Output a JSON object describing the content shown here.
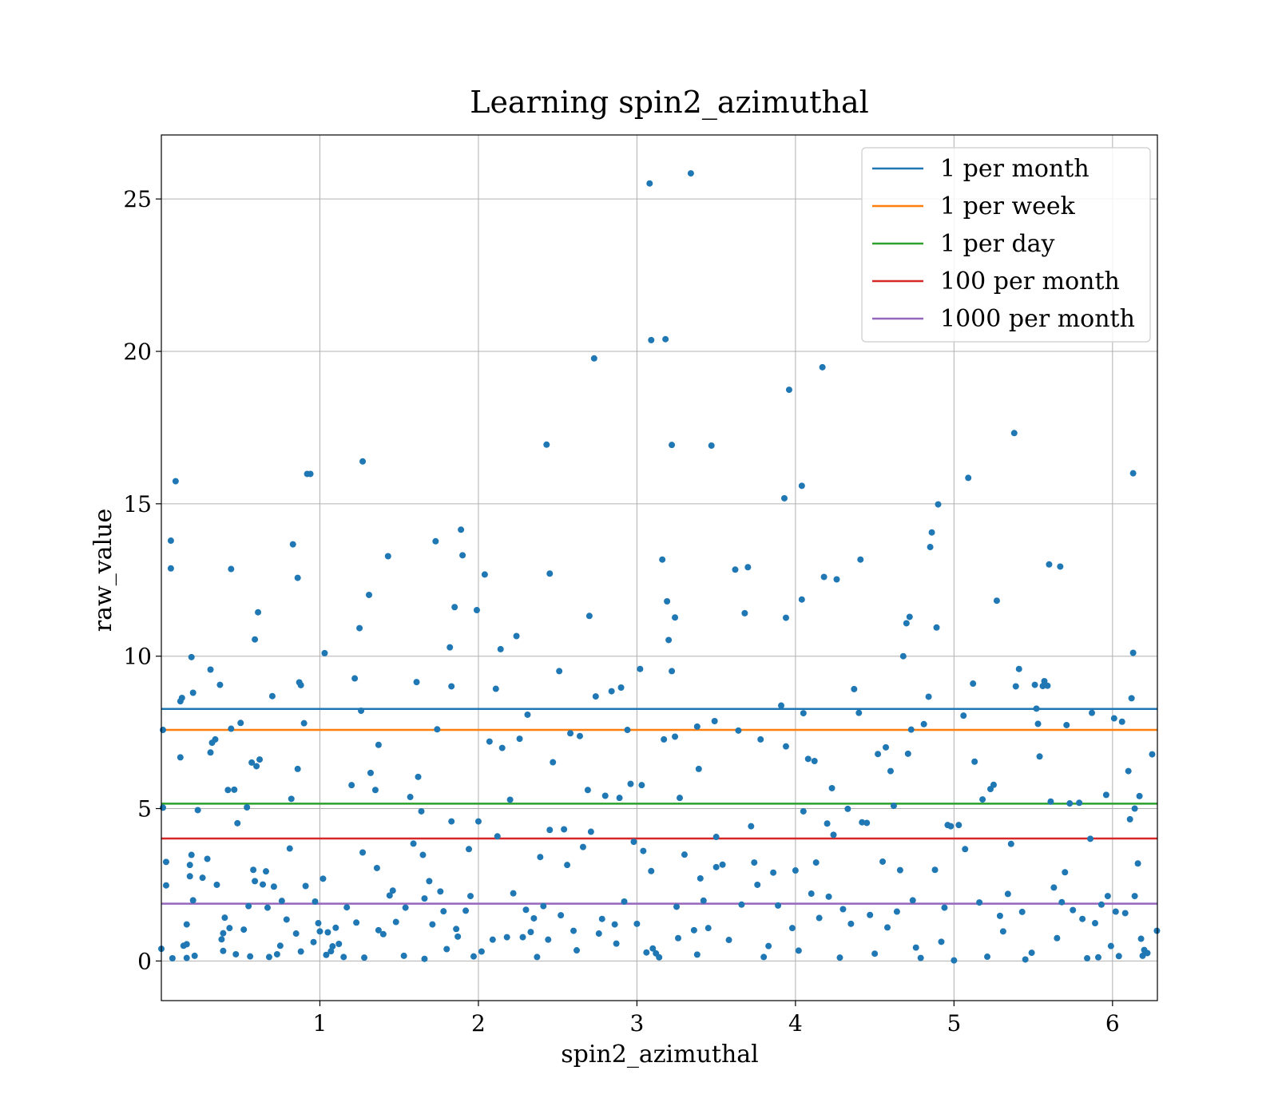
{
  "chart_data": {
    "type": "scatter",
    "title": "Learning spin2_azimuthal",
    "xlabel": "spin2_azimuthal",
    "ylabel": "raw_value",
    "xlim": [
      0,
      6.283
    ],
    "ylim": [
      -1.3,
      27.1
    ],
    "xticks": [
      "1",
      "2",
      "3",
      "4",
      "5",
      "6"
    ],
    "yticks": [
      "0",
      "5",
      "10",
      "15",
      "20",
      "25"
    ],
    "grid": true,
    "legend_position": "top-right",
    "point_color": "#1f77b4",
    "thresholds": [
      {
        "name": "1 per month",
        "value": 8.27,
        "color": "#1f77b4"
      },
      {
        "name": "1 per week",
        "value": 7.58,
        "color": "#ff7f0e"
      },
      {
        "name": "1 per day",
        "value": 5.16,
        "color": "#2ca02c"
      },
      {
        "name": "100 per month",
        "value": 4.02,
        "color": "#d62728"
      },
      {
        "name": "1000 per month",
        "value": 1.88,
        "color": "#9467bd"
      }
    ],
    "points": [
      [
        0.0,
        0.4
      ],
      [
        0.01,
        7.58
      ],
      [
        0.01,
        5.03
      ],
      [
        0.03,
        3.25
      ],
      [
        0.03,
        2.48
      ],
      [
        0.06,
        13.79
      ],
      [
        0.06,
        12.88
      ],
      [
        0.07,
        0.09
      ],
      [
        0.09,
        15.74
      ],
      [
        0.12,
        8.52
      ],
      [
        0.12,
        6.68
      ],
      [
        0.13,
        8.63
      ],
      [
        0.14,
        0.5
      ],
      [
        0.16,
        1.2
      ],
      [
        0.16,
        0.55
      ],
      [
        0.16,
        0.1
      ],
      [
        0.18,
        3.15
      ],
      [
        0.18,
        2.78
      ],
      [
        0.19,
        3.48
      ],
      [
        0.19,
        9.97
      ],
      [
        0.2,
        8.8
      ],
      [
        0.2,
        1.99
      ],
      [
        0.21,
        0.17
      ],
      [
        0.23,
        4.95
      ],
      [
        0.26,
        2.73
      ],
      [
        0.29,
        3.35
      ],
      [
        0.31,
        9.56
      ],
      [
        0.31,
        6.84
      ],
      [
        0.32,
        7.16
      ],
      [
        0.34,
        7.27
      ],
      [
        0.35,
        2.5
      ],
      [
        0.37,
        9.06
      ],
      [
        0.38,
        0.71
      ],
      [
        0.39,
        0.91
      ],
      [
        0.39,
        0.33
      ],
      [
        0.4,
        1.42
      ],
      [
        0.42,
        5.61
      ],
      [
        0.43,
        1.08
      ],
      [
        0.44,
        12.86
      ],
      [
        0.44,
        7.62
      ],
      [
        0.46,
        5.62
      ],
      [
        0.47,
        0.22
      ],
      [
        0.48,
        4.52
      ],
      [
        0.5,
        7.81
      ],
      [
        0.52,
        1.03
      ],
      [
        0.54,
        5.04
      ],
      [
        0.55,
        1.8
      ],
      [
        0.56,
        0.15
      ],
      [
        0.57,
        6.51
      ],
      [
        0.58,
        2.99
      ],
      [
        0.59,
        10.55
      ],
      [
        0.59,
        2.62
      ],
      [
        0.6,
        6.39
      ],
      [
        0.61,
        11.44
      ],
      [
        0.62,
        6.61
      ],
      [
        0.64,
        2.51
      ],
      [
        0.66,
        2.94
      ],
      [
        0.67,
        1.75
      ],
      [
        0.68,
        0.13
      ],
      [
        0.7,
        8.69
      ],
      [
        0.71,
        2.44
      ],
      [
        0.73,
        0.22
      ],
      [
        0.75,
        0.5
      ],
      [
        0.76,
        1.97
      ],
      [
        0.79,
        1.36
      ],
      [
        0.81,
        3.69
      ],
      [
        0.82,
        5.32
      ],
      [
        0.83,
        13.67
      ],
      [
        0.85,
        0.9
      ],
      [
        0.86,
        12.57
      ],
      [
        0.86,
        6.3
      ],
      [
        0.87,
        9.14
      ],
      [
        0.88,
        9.05
      ],
      [
        0.88,
        0.31
      ],
      [
        0.9,
        7.8
      ],
      [
        0.91,
        2.46
      ],
      [
        0.92,
        15.98
      ],
      [
        0.94,
        15.98
      ],
      [
        0.96,
        0.62
      ],
      [
        0.97,
        1.95
      ],
      [
        0.99,
        1.24
      ],
      [
        1.0,
        0.97
      ],
      [
        1.02,
        2.7
      ],
      [
        1.03,
        10.1
      ],
      [
        1.04,
        0.2
      ],
      [
        1.05,
        0.94
      ],
      [
        1.07,
        0.32
      ],
      [
        1.08,
        0.48
      ],
      [
        1.1,
        1.09
      ],
      [
        1.12,
        0.56
      ],
      [
        1.15,
        0.13
      ],
      [
        1.17,
        1.76
      ],
      [
        1.2,
        5.77
      ],
      [
        1.22,
        9.27
      ],
      [
        1.23,
        1.26
      ],
      [
        1.25,
        10.92
      ],
      [
        1.26,
        8.21
      ],
      [
        1.27,
        16.39
      ],
      [
        1.27,
        3.56
      ],
      [
        1.28,
        0.11
      ],
      [
        1.31,
        12.01
      ],
      [
        1.32,
        6.17
      ],
      [
        1.35,
        5.61
      ],
      [
        1.36,
        3.05
      ],
      [
        1.37,
        7.09
      ],
      [
        1.37,
        1.01
      ],
      [
        1.4,
        0.88
      ],
      [
        1.43,
        13.28
      ],
      [
        1.44,
        2.15
      ],
      [
        1.46,
        2.31
      ],
      [
        1.48,
        1.28
      ],
      [
        1.53,
        0.17
      ],
      [
        1.54,
        1.75
      ],
      [
        1.57,
        5.38
      ],
      [
        1.59,
        3.85
      ],
      [
        1.61,
        9.15
      ],
      [
        1.62,
        6.04
      ],
      [
        1.64,
        4.91
      ],
      [
        1.65,
        3.48
      ],
      [
        1.66,
        2.05
      ],
      [
        1.66,
        0.07
      ],
      [
        1.69,
        2.62
      ],
      [
        1.71,
        1.2
      ],
      [
        1.73,
        13.77
      ],
      [
        1.74,
        7.6
      ],
      [
        1.76,
        2.28
      ],
      [
        1.78,
        1.63
      ],
      [
        1.8,
        0.39
      ],
      [
        1.82,
        10.29
      ],
      [
        1.83,
        9.01
      ],
      [
        1.83,
        4.58
      ],
      [
        1.85,
        11.61
      ],
      [
        1.86,
        1.05
      ],
      [
        1.87,
        0.8
      ],
      [
        1.89,
        14.15
      ],
      [
        1.9,
        13.31
      ],
      [
        1.92,
        1.65
      ],
      [
        1.94,
        3.67
      ],
      [
        1.95,
        2.13
      ],
      [
        1.97,
        0.15
      ],
      [
        1.99,
        11.51
      ],
      [
        2.0,
        4.58
      ],
      [
        2.02,
        0.31
      ],
      [
        2.04,
        12.68
      ],
      [
        2.07,
        7.2
      ],
      [
        2.09,
        0.7
      ],
      [
        2.11,
        8.93
      ],
      [
        2.12,
        4.09
      ],
      [
        2.14,
        10.23
      ],
      [
        2.15,
        6.99
      ],
      [
        2.18,
        0.78
      ],
      [
        2.2,
        5.29
      ],
      [
        2.22,
        2.22
      ],
      [
        2.24,
        10.66
      ],
      [
        2.26,
        7.29
      ],
      [
        2.28,
        0.78
      ],
      [
        2.3,
        1.68
      ],
      [
        2.31,
        8.08
      ],
      [
        2.33,
        0.95
      ],
      [
        2.35,
        1.4
      ],
      [
        2.37,
        0.13
      ],
      [
        2.39,
        3.41
      ],
      [
        2.41,
        1.8
      ],
      [
        2.43,
        16.94
      ],
      [
        2.44,
        0.7
      ],
      [
        2.45,
        12.71
      ],
      [
        2.45,
        4.3
      ],
      [
        2.47,
        6.52
      ],
      [
        2.51,
        9.51
      ],
      [
        2.52,
        1.5
      ],
      [
        2.54,
        4.32
      ],
      [
        2.56,
        3.15
      ],
      [
        2.58,
        7.47
      ],
      [
        2.6,
        0.99
      ],
      [
        2.62,
        0.35
      ],
      [
        2.64,
        7.38
      ],
      [
        2.66,
        3.74
      ],
      [
        2.69,
        5.61
      ],
      [
        2.7,
        11.32
      ],
      [
        2.71,
        4.24
      ],
      [
        2.73,
        19.77
      ],
      [
        2.74,
        8.68
      ],
      [
        2.76,
        0.9
      ],
      [
        2.78,
        1.38
      ],
      [
        2.8,
        5.42
      ],
      [
        2.84,
        8.85
      ],
      [
        2.86,
        1.2
      ],
      [
        2.87,
        0.57
      ],
      [
        2.89,
        5.35
      ],
      [
        2.9,
        8.97
      ],
      [
        2.92,
        1.95
      ],
      [
        2.94,
        7.58
      ],
      [
        2.96,
        5.81
      ],
      [
        2.98,
        3.91
      ],
      [
        3.0,
        1.22
      ],
      [
        3.02,
        9.58
      ],
      [
        3.03,
        5.77
      ],
      [
        3.04,
        3.61
      ],
      [
        3.06,
        0.28
      ],
      [
        3.08,
        25.51
      ],
      [
        3.09,
        20.37
      ],
      [
        3.09,
        2.95
      ],
      [
        3.1,
        0.41
      ],
      [
        3.12,
        0.25
      ],
      [
        3.14,
        0.12
      ],
      [
        3.16,
        13.17
      ],
      [
        3.17,
        7.27
      ],
      [
        3.18,
        20.4
      ],
      [
        3.19,
        11.8
      ],
      [
        3.2,
        10.53
      ],
      [
        3.22,
        16.93
      ],
      [
        3.22,
        9.51
      ],
      [
        3.24,
        11.27
      ],
      [
        3.24,
        7.36
      ],
      [
        3.25,
        1.78
      ],
      [
        3.26,
        0.75
      ],
      [
        3.27,
        5.35
      ],
      [
        3.3,
        3.49
      ],
      [
        3.34,
        25.84
      ],
      [
        3.36,
        1.01
      ],
      [
        3.38,
        7.69
      ],
      [
        3.38,
        0.21
      ],
      [
        3.39,
        6.3
      ],
      [
        3.4,
        2.71
      ],
      [
        3.42,
        1.98
      ],
      [
        3.45,
        1.08
      ],
      [
        3.47,
        16.91
      ],
      [
        3.49,
        7.87
      ],
      [
        3.5,
        3.08
      ],
      [
        3.5,
        4.07
      ],
      [
        3.54,
        3.16
      ],
      [
        3.58,
        0.69
      ],
      [
        3.62,
        12.84
      ],
      [
        3.64,
        7.56
      ],
      [
        3.66,
        1.85
      ],
      [
        3.68,
        11.41
      ],
      [
        3.7,
        12.92
      ],
      [
        3.72,
        4.42
      ],
      [
        3.74,
        3.23
      ],
      [
        3.76,
        2.5
      ],
      [
        3.78,
        7.27
      ],
      [
        3.8,
        0.13
      ],
      [
        3.83,
        0.49
      ],
      [
        3.86,
        2.9
      ],
      [
        3.89,
        1.82
      ],
      [
        3.91,
        8.38
      ],
      [
        3.93,
        15.18
      ],
      [
        3.94,
        11.26
      ],
      [
        3.94,
        7.04
      ],
      [
        3.96,
        18.74
      ],
      [
        3.98,
        1.08
      ],
      [
        4.0,
        2.97
      ],
      [
        4.02,
        0.34
      ],
      [
        4.04,
        15.59
      ],
      [
        4.04,
        11.86
      ],
      [
        4.05,
        8.13
      ],
      [
        4.05,
        4.91
      ],
      [
        4.08,
        6.63
      ],
      [
        4.1,
        2.21
      ],
      [
        4.12,
        6.56
      ],
      [
        4.13,
        3.23
      ],
      [
        4.15,
        1.41
      ],
      [
        4.17,
        19.48
      ],
      [
        4.18,
        12.6
      ],
      [
        4.2,
        4.51
      ],
      [
        4.21,
        2.11
      ],
      [
        4.23,
        5.67
      ],
      [
        4.24,
        4.14
      ],
      [
        4.26,
        12.52
      ],
      [
        4.28,
        0.11
      ],
      [
        4.3,
        1.7
      ],
      [
        4.33,
        4.99
      ],
      [
        4.35,
        1.22
      ],
      [
        4.37,
        8.92
      ],
      [
        4.4,
        8.14
      ],
      [
        4.41,
        13.17
      ],
      [
        4.42,
        4.55
      ],
      [
        4.45,
        4.53
      ],
      [
        4.47,
        1.51
      ],
      [
        4.5,
        0.24
      ],
      [
        4.52,
        6.79
      ],
      [
        4.55,
        3.26
      ],
      [
        4.57,
        7.01
      ],
      [
        4.58,
        1.1
      ],
      [
        4.6,
        6.23
      ],
      [
        4.62,
        5.09
      ],
      [
        4.64,
        1.62
      ],
      [
        4.66,
        2.98
      ],
      [
        4.68,
        10.0
      ],
      [
        4.7,
        11.08
      ],
      [
        4.71,
        6.8
      ],
      [
        4.72,
        11.29
      ],
      [
        4.73,
        7.59
      ],
      [
        4.74,
        1.99
      ],
      [
        4.76,
        0.44
      ],
      [
        4.79,
        0.1
      ],
      [
        4.81,
        7.77
      ],
      [
        4.84,
        8.67
      ],
      [
        4.85,
        13.58
      ],
      [
        4.86,
        14.06
      ],
      [
        4.88,
        2.99
      ],
      [
        4.89,
        10.94
      ],
      [
        4.9,
        14.98
      ],
      [
        4.92,
        0.63
      ],
      [
        4.94,
        1.75
      ],
      [
        4.96,
        4.46
      ],
      [
        4.98,
        4.42
      ],
      [
        5.0,
        0.02
      ],
      [
        5.03,
        4.46
      ],
      [
        5.06,
        8.05
      ],
      [
        5.07,
        3.67
      ],
      [
        5.09,
        15.85
      ],
      [
        5.12,
        9.1
      ],
      [
        5.13,
        6.54
      ],
      [
        5.16,
        1.92
      ],
      [
        5.18,
        5.3
      ],
      [
        5.21,
        0.14
      ],
      [
        5.23,
        5.64
      ],
      [
        5.25,
        5.78
      ],
      [
        5.27,
        11.82
      ],
      [
        5.29,
        1.48
      ],
      [
        5.31,
        0.97
      ],
      [
        5.34,
        2.2
      ],
      [
        5.36,
        3.84
      ],
      [
        5.38,
        17.32
      ],
      [
        5.39,
        9.01
      ],
      [
        5.41,
        9.58
      ],
      [
        5.43,
        1.61
      ],
      [
        5.45,
        0.05
      ],
      [
        5.49,
        0.27
      ],
      [
        5.51,
        9.06
      ],
      [
        5.52,
        8.28
      ],
      [
        5.53,
        7.78
      ],
      [
        5.54,
        6.71
      ],
      [
        5.56,
        9.02
      ],
      [
        5.57,
        9.18
      ],
      [
        5.59,
        9.03
      ],
      [
        5.6,
        13.01
      ],
      [
        5.61,
        5.23
      ],
      [
        5.63,
        2.41
      ],
      [
        5.65,
        0.75
      ],
      [
        5.67,
        12.94
      ],
      [
        5.68,
        1.93
      ],
      [
        5.7,
        2.91
      ],
      [
        5.71,
        7.74
      ],
      [
        5.73,
        5.17
      ],
      [
        5.75,
        1.67
      ],
      [
        5.79,
        5.19
      ],
      [
        5.81,
        1.38
      ],
      [
        5.84,
        0.09
      ],
      [
        5.86,
        4.01
      ],
      [
        5.87,
        8.14
      ],
      [
        5.89,
        1.24
      ],
      [
        5.91,
        0.12
      ],
      [
        5.93,
        1.85
      ],
      [
        5.96,
        5.45
      ],
      [
        5.97,
        2.13
      ],
      [
        5.99,
        0.49
      ],
      [
        6.01,
        7.96
      ],
      [
        6.02,
        1.62
      ],
      [
        6.04,
        0.16
      ],
      [
        6.06,
        7.85
      ],
      [
        6.08,
        1.57
      ],
      [
        6.1,
        6.23
      ],
      [
        6.11,
        4.65
      ],
      [
        6.12,
        8.62
      ],
      [
        6.13,
        16.0
      ],
      [
        6.13,
        10.11
      ],
      [
        6.14,
        5.0
      ],
      [
        6.14,
        2.13
      ],
      [
        6.16,
        3.2
      ],
      [
        6.17,
        5.41
      ],
      [
        6.18,
        0.73
      ],
      [
        6.19,
        0.17
      ],
      [
        6.2,
        0.36
      ],
      [
        6.22,
        0.26
      ],
      [
        6.25,
        6.78
      ],
      [
        6.28,
        0.99
      ]
    ]
  }
}
